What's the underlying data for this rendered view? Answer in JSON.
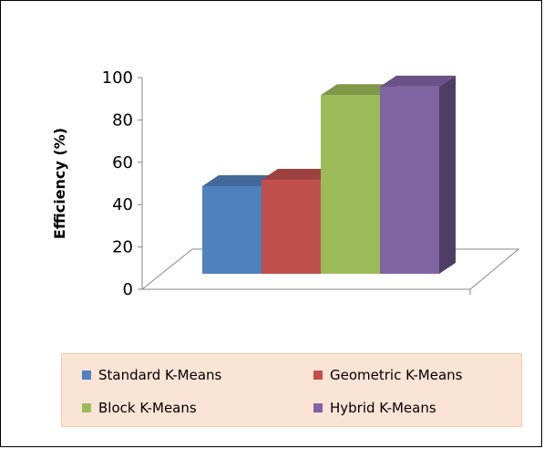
{
  "chart_data": {
    "type": "bar",
    "categories": [
      "Standard K-Means",
      "Geometric K-Means",
      "Block K-Means",
      "Hybrid K-Means"
    ],
    "values": [
      47,
      50,
      90,
      94
    ],
    "ylabel": "Efficiency  (%)",
    "ylim": [
      0,
      100
    ],
    "yticks": [
      "0",
      "20",
      "40",
      "60",
      "80",
      "100"
    ],
    "colors": [
      "#4f81bd",
      "#c0504d",
      "#9bbb59",
      "#8064a2"
    ],
    "grid": false,
    "style": "3d-column",
    "legend_position": "bottom"
  },
  "legend": {
    "items": [
      {
        "label": "Standard K-Means",
        "color": "#4f81bd"
      },
      {
        "label": "Geometric K-Means",
        "color": "#c0504d"
      },
      {
        "label": "Block K-Means",
        "color": "#9bbb59"
      },
      {
        "label": "Hybrid K-Means",
        "color": "#8064a2"
      }
    ]
  }
}
